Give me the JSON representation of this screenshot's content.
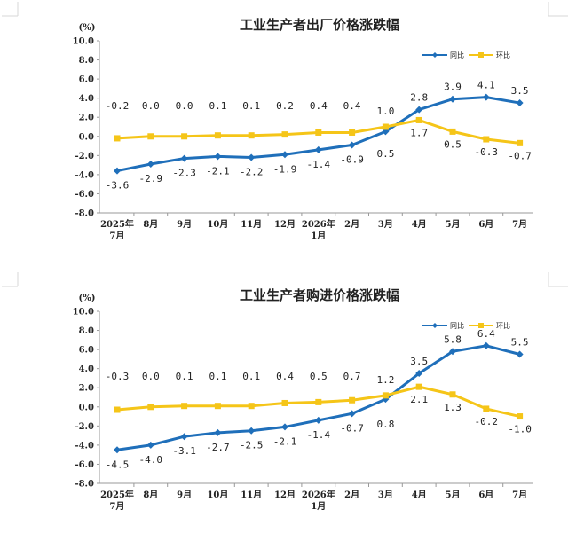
{
  "legend": {
    "yoy": "同比",
    "mom": "环比"
  },
  "colors": {
    "yoy": "#1f6fba",
    "mom": "#f5c518"
  },
  "chart_data": [
    {
      "type": "line",
      "title": "工业生产者出厂价格涨跌幅",
      "unit": "(%)",
      "ylim": [
        -8.0,
        10.0
      ],
      "yticks": [
        "10.0",
        "8.0",
        "6.0",
        "4.0",
        "2.0",
        "0.0",
        "-2.0",
        "-4.0",
        "-6.0",
        "-8.0"
      ],
      "categories": [
        "2025年\n7月",
        "8月",
        "9月",
        "10月",
        "11月",
        "12月",
        "2026年\n1月",
        "2月",
        "3月",
        "4月",
        "5月",
        "6月",
        "7月"
      ],
      "series": [
        {
          "name": "同比",
          "values": [
            -3.6,
            -2.9,
            -2.3,
            -2.1,
            -2.2,
            -1.9,
            -1.4,
            -0.9,
            0.5,
            2.8,
            3.9,
            4.1,
            3.5
          ],
          "labels": [
            "-3.6",
            "-2.9",
            "-2.3",
            "-2.1",
            "-2.2",
            "-1.9",
            "-1.4",
            "-0.9",
            "0.5",
            "2.8",
            "3.9",
            "4.1",
            "3.5"
          ]
        },
        {
          "name": "环比",
          "values": [
            -0.2,
            0.0,
            0.0,
            0.1,
            0.1,
            0.2,
            0.4,
            0.4,
            1.0,
            1.7,
            0.5,
            -0.3,
            -0.7
          ],
          "labels": [
            "-0.2",
            "0.0",
            "0.0",
            "0.1",
            "0.1",
            "0.2",
            "0.4",
            "0.4",
            "1.0",
            "1.7",
            "0.5",
            "-0.3",
            "-0.7"
          ]
        }
      ]
    },
    {
      "type": "line",
      "title": "工业生产者购进价格涨跌幅",
      "unit": "(%)",
      "ylim": [
        -8.0,
        10.0
      ],
      "yticks": [
        "10.0",
        "8.0",
        "6.0",
        "4.0",
        "2.0",
        "0.0",
        "-2.0",
        "-4.0",
        "-6.0",
        "-8.0"
      ],
      "categories": [
        "2025年\n7月",
        "8月",
        "9月",
        "10月",
        "11月",
        "12月",
        "2026年\n1月",
        "2月",
        "3月",
        "4月",
        "5月",
        "6月",
        "7月"
      ],
      "series": [
        {
          "name": "同比",
          "values": [
            -4.5,
            -4.0,
            -3.1,
            -2.7,
            -2.5,
            -2.1,
            -1.4,
            -0.7,
            0.8,
            3.5,
            5.8,
            6.4,
            5.5
          ],
          "labels": [
            "-4.5",
            "-4.0",
            "-3.1",
            "-2.7",
            "-2.5",
            "-2.1",
            "-1.4",
            "-0.7",
            "0.8",
            "3.5",
            "5.8",
            "6.4",
            "5.5"
          ]
        },
        {
          "name": "环比",
          "values": [
            -0.3,
            0.0,
            0.1,
            0.1,
            0.1,
            0.4,
            0.5,
            0.7,
            1.2,
            2.1,
            1.3,
            -0.2,
            -1.0
          ],
          "labels": [
            "-0.3",
            "0.0",
            "0.1",
            "0.1",
            "0.1",
            "0.4",
            "0.5",
            "0.7",
            "1.2",
            "2.1",
            "1.3",
            "-0.2",
            "-1.0"
          ]
        }
      ]
    }
  ]
}
